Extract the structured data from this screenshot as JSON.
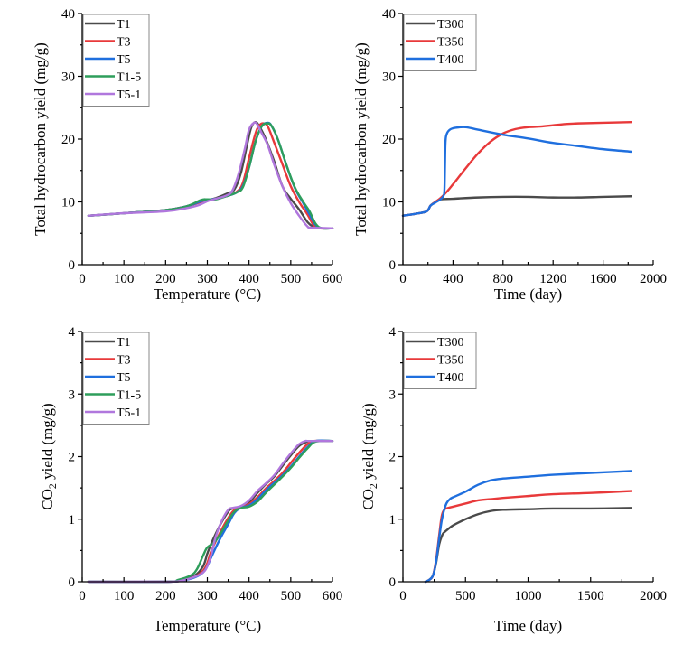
{
  "chart_data": [
    {
      "type": "line",
      "id": "hc-temp",
      "title": "",
      "xlabel": "Temperature (°C)",
      "ylabel": "Total hydrocarbon yield (mg/g)",
      "xlim": [
        0,
        600
      ],
      "ylim": [
        0,
        40
      ],
      "xticks": [
        0,
        100,
        200,
        300,
        400,
        500,
        600
      ],
      "xtick_labels": [
        "0",
        "100",
        "200",
        "300",
        "400",
        "500",
        "600"
      ],
      "yticks": [
        0,
        10,
        20,
        30,
        40
      ],
      "ytick_labels": [
        "0",
        "10",
        "20",
        "30",
        "40"
      ],
      "legend_position": "top-left",
      "grid": false,
      "series": [
        {
          "name": "T1",
          "color": "#4a4a4a",
          "x": [
            15,
            100,
            200,
            250,
            290,
            320,
            350,
            365,
            380,
            395,
            405,
            415,
            425,
            440,
            460,
            480,
            500,
            520,
            540,
            555,
            565,
            600
          ],
          "y": [
            7.8,
            8.2,
            8.7,
            9.3,
            10.1,
            10.6,
            11.4,
            12.0,
            14.5,
            19.0,
            21.8,
            22.7,
            22.0,
            20.0,
            16.5,
            12.5,
            10.5,
            8.8,
            6.8,
            6.0,
            5.8,
            5.8
          ]
        },
        {
          "name": "T3",
          "color": "#e8393a",
          "x": [
            15,
            100,
            200,
            250,
            290,
            320,
            350,
            370,
            385,
            400,
            415,
            425,
            435,
            445,
            460,
            480,
            500,
            520,
            540,
            555,
            570,
            600
          ],
          "y": [
            7.8,
            8.2,
            8.7,
            9.3,
            10.1,
            10.5,
            11.0,
            11.6,
            13.0,
            17.0,
            20.8,
            22.2,
            22.5,
            22.0,
            19.5,
            16.0,
            12.5,
            10.0,
            8.0,
            6.3,
            5.8,
            5.8
          ]
        },
        {
          "name": "T5",
          "color": "#1f6fde",
          "x": [
            15,
            100,
            200,
            250,
            290,
            320,
            350,
            370,
            385,
            400,
            415,
            430,
            445,
            455,
            470,
            490,
            510,
            530,
            545,
            560,
            575,
            600
          ],
          "y": [
            7.8,
            8.2,
            8.7,
            9.3,
            10.2,
            10.5,
            11.0,
            11.5,
            12.5,
            15.5,
            19.5,
            22.0,
            22.6,
            22.0,
            19.8,
            15.8,
            12.2,
            9.8,
            8.0,
            6.3,
            5.8,
            5.8
          ]
        },
        {
          "name": "T1-5",
          "color": "#2e9e5b",
          "x": [
            15,
            100,
            200,
            250,
            285,
            300,
            320,
            350,
            370,
            385,
            400,
            415,
            430,
            445,
            455,
            470,
            490,
            510,
            530,
            545,
            560,
            575,
            600
          ],
          "y": [
            7.8,
            8.2,
            8.7,
            9.3,
            10.3,
            10.4,
            10.4,
            11.0,
            11.5,
            12.3,
            15.5,
            19.5,
            22.0,
            22.5,
            22.0,
            19.8,
            15.8,
            12.3,
            10.0,
            8.5,
            6.5,
            5.8,
            5.8
          ]
        },
        {
          "name": "T5-1",
          "color": "#b077dd",
          "x": [
            15,
            100,
            200,
            250,
            280,
            300,
            320,
            345,
            360,
            375,
            390,
            400,
            412,
            420,
            430,
            445,
            460,
            480,
            500,
            520,
            540,
            550,
            600
          ],
          "y": [
            7.8,
            8.2,
            8.5,
            9.0,
            9.5,
            10.1,
            10.5,
            11.0,
            11.8,
            14.5,
            18.5,
            21.5,
            22.6,
            22.3,
            21.0,
            19.0,
            16.0,
            12.5,
            9.8,
            7.8,
            6.1,
            5.9,
            5.8
          ]
        }
      ]
    },
    {
      "type": "line",
      "id": "hc-time",
      "title": "",
      "xlabel": "Time (day)",
      "ylabel": "Total hydrocarbon yield (mg/g)",
      "xlim": [
        0,
        2000
      ],
      "ylim": [
        0,
        40
      ],
      "xticks": [
        0,
        400,
        800,
        1200,
        1600,
        2000
      ],
      "xtick_labels": [
        "0",
        "400",
        "800",
        "1200",
        "1600",
        "2000"
      ],
      "yticks": [
        0,
        10,
        20,
        30,
        40
      ],
      "ytick_labels": [
        "0",
        "10",
        "20",
        "30",
        "40"
      ],
      "legend_position": "top-left",
      "grid": false,
      "series": [
        {
          "name": "T300",
          "color": "#4a4a4a",
          "x": [
            0,
            100,
            190,
            220,
            260,
            300,
            400,
            600,
            800,
            1000,
            1200,
            1400,
            1600,
            1825
          ],
          "y": [
            7.8,
            8.1,
            8.5,
            9.4,
            10.0,
            10.4,
            10.5,
            10.7,
            10.8,
            10.8,
            10.7,
            10.7,
            10.8,
            10.9
          ]
        },
        {
          "name": "T350",
          "color": "#e8393a",
          "x": [
            0,
            100,
            190,
            220,
            260,
            300,
            350,
            400,
            500,
            600,
            700,
            800,
            900,
            1000,
            1100,
            1200,
            1300,
            1400,
            1600,
            1825
          ],
          "y": [
            7.8,
            8.1,
            8.5,
            9.4,
            10.0,
            10.6,
            11.6,
            12.8,
            15.3,
            17.7,
            19.6,
            20.9,
            21.6,
            21.9,
            22.0,
            22.2,
            22.4,
            22.5,
            22.6,
            22.7
          ]
        },
        {
          "name": "T400",
          "color": "#1f6fde",
          "x": [
            0,
            100,
            190,
            220,
            260,
            300,
            325,
            332,
            336,
            340,
            350,
            375,
            420,
            500,
            600,
            800,
            1000,
            1200,
            1400,
            1600,
            1825
          ],
          "y": [
            7.8,
            8.1,
            8.5,
            9.4,
            9.9,
            10.4,
            11.0,
            12.0,
            16.0,
            19.5,
            20.8,
            21.5,
            21.8,
            21.9,
            21.5,
            20.7,
            20.1,
            19.4,
            18.9,
            18.4,
            18.0
          ]
        }
      ]
    },
    {
      "type": "line",
      "id": "co2-temp",
      "title": "",
      "xlabel": "Temperature (°C)",
      "ylabel": "CO2 yield (mg/g)",
      "ylabel_parts": {
        "prefix": "CO",
        "subscript": "2",
        "suffix": " yield (mg/g)"
      },
      "xlim": [
        0,
        600
      ],
      "ylim": [
        0,
        4
      ],
      "xticks": [
        0,
        100,
        200,
        300,
        400,
        500,
        600
      ],
      "xtick_labels": [
        "0",
        "100",
        "200",
        "300",
        "400",
        "500",
        "600"
      ],
      "yticks": [
        0,
        1,
        2,
        3,
        4
      ],
      "ytick_labels": [
        "0",
        "1",
        "2",
        "3",
        "4"
      ],
      "legend_position": "top-left",
      "grid": false,
      "series": [
        {
          "name": "T1",
          "color": "#4a4a4a",
          "x": [
            15,
            200,
            240,
            270,
            290,
            300,
            310,
            330,
            350,
            360,
            380,
            400,
            420,
            440,
            460,
            480,
            500,
            520,
            540,
            555,
            600
          ],
          "y": [
            0,
            0,
            0.03,
            0.1,
            0.25,
            0.45,
            0.62,
            0.9,
            1.12,
            1.17,
            1.2,
            1.27,
            1.42,
            1.56,
            1.68,
            1.85,
            2.02,
            2.17,
            2.24,
            2.25,
            2.25
          ]
        },
        {
          "name": "T3",
          "color": "#e8393a",
          "x": [
            15,
            200,
            240,
            270,
            290,
            300,
            310,
            330,
            350,
            365,
            380,
            400,
            420,
            440,
            460,
            480,
            500,
            520,
            540,
            555,
            600
          ],
          "y": [
            0,
            0,
            0.02,
            0.08,
            0.18,
            0.3,
            0.5,
            0.78,
            1.02,
            1.15,
            1.19,
            1.24,
            1.35,
            1.49,
            1.61,
            1.74,
            1.9,
            2.06,
            2.2,
            2.25,
            2.25
          ]
        },
        {
          "name": "T5",
          "color": "#1f6fde",
          "x": [
            15,
            200,
            240,
            270,
            290,
            300,
            310,
            330,
            350,
            365,
            380,
            400,
            420,
            440,
            460,
            480,
            500,
            520,
            540,
            560,
            600
          ],
          "y": [
            0,
            0,
            0.02,
            0.07,
            0.15,
            0.25,
            0.4,
            0.68,
            0.92,
            1.1,
            1.18,
            1.22,
            1.32,
            1.46,
            1.58,
            1.7,
            1.84,
            2.0,
            2.15,
            2.25,
            2.25
          ]
        },
        {
          "name": "T1-5",
          "color": "#2e9e5b",
          "x": [
            15,
            200,
            230,
            260,
            275,
            290,
            300,
            315,
            330,
            350,
            365,
            380,
            400,
            420,
            440,
            460,
            480,
            500,
            520,
            540,
            560,
            600
          ],
          "y": [
            0,
            0,
            0.03,
            0.1,
            0.2,
            0.42,
            0.55,
            0.62,
            0.75,
            0.98,
            1.12,
            1.18,
            1.2,
            1.28,
            1.42,
            1.55,
            1.68,
            1.82,
            1.98,
            2.13,
            2.24,
            2.25
          ]
        },
        {
          "name": "T5-1",
          "color": "#b077dd",
          "x": [
            15,
            200,
            240,
            270,
            290,
            300,
            310,
            320,
            335,
            350,
            360,
            380,
            400,
            420,
            440,
            460,
            480,
            500,
            520,
            535,
            545,
            600
          ],
          "y": [
            0,
            0,
            0.02,
            0.08,
            0.15,
            0.25,
            0.45,
            0.72,
            0.98,
            1.15,
            1.18,
            1.21,
            1.3,
            1.45,
            1.57,
            1.7,
            1.88,
            2.05,
            2.2,
            2.25,
            2.25,
            2.25
          ]
        }
      ]
    },
    {
      "type": "line",
      "id": "co2-time",
      "title": "",
      "xlabel": "Time (day)",
      "ylabel": "CO2 yield (mg/g)",
      "ylabel_parts": {
        "prefix": "CO",
        "subscript": "2",
        "suffix": " yield (mg/g)"
      },
      "xlim": [
        0,
        2000
      ],
      "ylim": [
        0,
        4
      ],
      "xticks": [
        0,
        500,
        1000,
        1500,
        2000
      ],
      "xtick_labels": [
        "0",
        "500",
        "1000",
        "1500",
        "2000"
      ],
      "yticks": [
        0,
        1,
        2,
        3,
        4
      ],
      "ytick_labels": [
        "0",
        "1",
        "2",
        "3",
        "4"
      ],
      "legend_position": "top-left",
      "grid": false,
      "series": [
        {
          "name": "T300",
          "color": "#4a4a4a",
          "x": [
            180,
            210,
            240,
            265,
            290,
            315,
            330,
            360,
            400,
            500,
            600,
            700,
            800,
            1000,
            1200,
            1500,
            1825
          ],
          "y": [
            0,
            0.03,
            0.1,
            0.3,
            0.6,
            0.75,
            0.79,
            0.84,
            0.9,
            1.0,
            1.08,
            1.13,
            1.15,
            1.16,
            1.17,
            1.17,
            1.18
          ]
        },
        {
          "name": "T350",
          "color": "#e8393a",
          "x": [
            180,
            210,
            240,
            265,
            290,
            310,
            330,
            345,
            360,
            400,
            500,
            600,
            700,
            800,
            1000,
            1200,
            1500,
            1825
          ],
          "y": [
            0,
            0.03,
            0.1,
            0.35,
            0.75,
            1.05,
            1.15,
            1.17,
            1.18,
            1.2,
            1.25,
            1.3,
            1.32,
            1.34,
            1.37,
            1.4,
            1.42,
            1.45
          ]
        },
        {
          "name": "T400",
          "color": "#1f6fde",
          "x": [
            180,
            210,
            240,
            265,
            290,
            310,
            330,
            350,
            375,
            400,
            500,
            600,
            700,
            800,
            1000,
            1200,
            1500,
            1825
          ],
          "y": [
            0,
            0.03,
            0.1,
            0.32,
            0.7,
            0.98,
            1.15,
            1.26,
            1.32,
            1.35,
            1.44,
            1.55,
            1.62,
            1.65,
            1.68,
            1.71,
            1.74,
            1.77
          ]
        }
      ]
    }
  ]
}
